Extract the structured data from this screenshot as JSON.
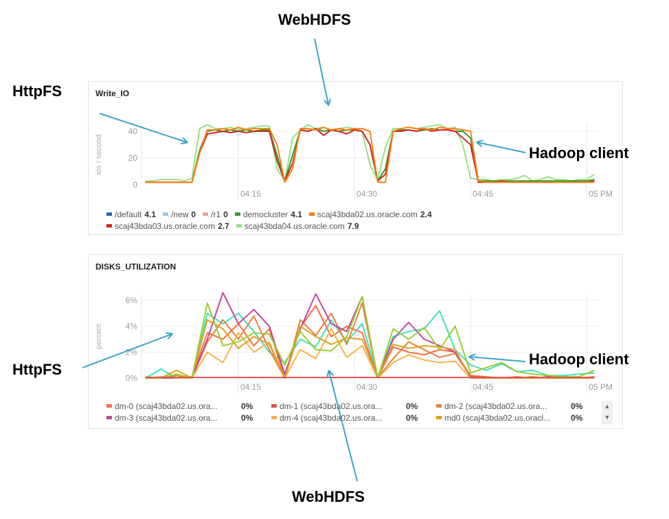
{
  "annotations": {
    "webhdfs_top": "WebHDFS",
    "httpfs_top": "HttpFS",
    "hadoop_top": "Hadoop client",
    "httpfs_bottom": "HttpFS",
    "hadoop_bottom": "Hadoop client",
    "webhdfs_bottom": "WebHDFS",
    "arrow_color": "#3aa3c7"
  },
  "chart_data": [
    {
      "type": "line",
      "title": "Write_IO",
      "ylabel": "ios / second",
      "xlabel": "",
      "ylim": [
        0,
        45
      ],
      "yticks": [
        "0",
        "20",
        "40"
      ],
      "ytick_values": [
        0,
        20,
        40
      ],
      "xticks": [
        "04:15",
        "04:30",
        "04:45",
        "05 PM"
      ],
      "xtick_values": [
        15,
        30,
        45,
        60
      ],
      "x_unit": "minutes after 04:00",
      "x": [
        3,
        4,
        5,
        6,
        7,
        8,
        9,
        10,
        11,
        12,
        13,
        14,
        15,
        16,
        17,
        18,
        19,
        20,
        21,
        22,
        23,
        24,
        25,
        26,
        27,
        28,
        29,
        30,
        31,
        32,
        33,
        34,
        35,
        36,
        37,
        38,
        39,
        40,
        41,
        42,
        43,
        44,
        45,
        46,
        47,
        48,
        49,
        50,
        51,
        52,
        53,
        54,
        55,
        56,
        57,
        58,
        59,
        60,
        61
      ],
      "legend": [
        {
          "name": "/default",
          "value": "4.1",
          "color": "#1f6fb4"
        },
        {
          "name": "/new",
          "value": "0",
          "color": "#9ecae1"
        },
        {
          "name": "/r1",
          "value": "0",
          "color": "#f4a0a0"
        },
        {
          "name": "democluster",
          "value": "4.1",
          "color": "#2ca02c"
        },
        {
          "name": "scaj43bda02.us.oracle.com",
          "value": "2.4",
          "color": "#ff7f0e"
        },
        {
          "name": "scaj43bda03.us.oracle.com",
          "value": "2.7",
          "color": "#d62728"
        },
        {
          "name": "scaj43bda04.us.oracle.com",
          "value": "7.9",
          "color": "#98df8a"
        }
      ],
      "series": [
        {
          "name": "scaj43bda04.us.oracle.com",
          "color": "#98df8a",
          "values": [
            3,
            3,
            4,
            4,
            4,
            3,
            5,
            42,
            45,
            42,
            42,
            43,
            41,
            42,
            43,
            44,
            44,
            12,
            3,
            35,
            41,
            45,
            42,
            43,
            41,
            42,
            43,
            42,
            40,
            15,
            4,
            28,
            42,
            42,
            43,
            42,
            43,
            44,
            45,
            42,
            43,
            30,
            5,
            4,
            4,
            3,
            4,
            4,
            5,
            7,
            3,
            4,
            6,
            4,
            4,
            3,
            4,
            4,
            8
          ]
        },
        {
          "name": "democluster",
          "color": "#2ca02c",
          "values": [
            2,
            2,
            2,
            2,
            2,
            2,
            2,
            26,
            40,
            41,
            40,
            41,
            40,
            41,
            40,
            41,
            41,
            22,
            3,
            22,
            41,
            40,
            42,
            40,
            41,
            40,
            41,
            41,
            40,
            30,
            3,
            12,
            40,
            41,
            41,
            40,
            41,
            42,
            41,
            41,
            40,
            40,
            35,
            3,
            3,
            3,
            3,
            3,
            3,
            3,
            3,
            3,
            3,
            3,
            3,
            3,
            3,
            3,
            4
          ]
        },
        {
          "name": "scaj43bda03.us.oracle.com",
          "color": "#d62728",
          "values": [
            2,
            2,
            2,
            2,
            2,
            2,
            2,
            24,
            38,
            39,
            40,
            39,
            40,
            39,
            40,
            40,
            40,
            18,
            3,
            16,
            41,
            40,
            42,
            37,
            41,
            40,
            38,
            41,
            40,
            30,
            3,
            8,
            40,
            40,
            41,
            40,
            42,
            40,
            41,
            41,
            40,
            35,
            30,
            2,
            2,
            2,
            3,
            2,
            2,
            2,
            2,
            2,
            2,
            2,
            2,
            2,
            2,
            2,
            3
          ]
        },
        {
          "name": "scaj43bda02.us.oracle.com",
          "color": "#ff7f0e",
          "values": [
            2,
            2,
            2,
            2,
            2,
            2,
            2,
            24,
            41,
            41,
            42,
            41,
            43,
            41,
            42,
            42,
            42,
            30,
            2,
            12,
            42,
            42,
            41,
            43,
            41,
            42,
            41,
            42,
            42,
            40,
            2,
            2,
            40,
            42,
            43,
            42,
            42,
            41,
            43,
            42,
            42,
            41,
            40,
            3,
            2,
            2,
            2,
            2,
            2,
            2,
            2,
            2,
            2,
            2,
            2,
            2,
            2,
            2,
            2
          ]
        }
      ]
    },
    {
      "type": "line",
      "title": "DISKS_UTILIZATION",
      "ylabel": "percent",
      "xlabel": "",
      "ylim": [
        0,
        7
      ],
      "yticks": [
        "0%",
        "2%",
        "4%",
        "6%"
      ],
      "ytick_values": [
        0,
        2,
        4,
        6
      ],
      "xticks": [
        "04:15",
        "04:30",
        "04:45",
        "05 PM"
      ],
      "xtick_values": [
        15,
        30,
        45,
        60
      ],
      "x_unit": "minutes after 04:00",
      "x": [
        3,
        5,
        7,
        9,
        11,
        13,
        15,
        17,
        19,
        21,
        23,
        25,
        27,
        29,
        31,
        33,
        35,
        37,
        39,
        41,
        43,
        45,
        47,
        49,
        51,
        53,
        55,
        57,
        59,
        61
      ],
      "legend": [
        {
          "name": "dm-0 (scaj43bda02.us.ora...",
          "value": "0%",
          "color": "#ff6a3d"
        },
        {
          "name": "dm-1 (scaj43bda02.us.ora...",
          "value": "0%",
          "color": "#d9534f"
        },
        {
          "name": "dm-2 (scaj43bda02.us.ora...",
          "value": "0%",
          "color": "#e8803a"
        },
        {
          "name": "dm-3 (scaj43bda02.us.ora...",
          "value": "0%",
          "color": "#c0479e"
        },
        {
          "name": "dm-4 (scaj43bda02.us.ora...",
          "value": "0%",
          "color": "#f7b34a"
        },
        {
          "name": "md0 (scaj43bda02.us.oracl...",
          "value": "0%",
          "color": "#e0a020"
        }
      ],
      "series": [
        {
          "color": "#40e0c0",
          "values": [
            0,
            0.7,
            0,
            0,
            5,
            4.2,
            5,
            3.6,
            2,
            1.2,
            3,
            2.4,
            4.5,
            2.8,
            4.2,
            0.1,
            3.2,
            3.6,
            3.8,
            5.2,
            2.2,
            1,
            0.6,
            1.1,
            0.5,
            0.6,
            0.2,
            0.2,
            0.3,
            0.4
          ]
        },
        {
          "color": "#ff6a3d",
          "values": [
            0,
            0.1,
            0,
            0.1,
            3.5,
            3,
            4.2,
            2.5,
            3.8,
            0,
            3.9,
            5.6,
            3.2,
            4,
            3.5,
            0,
            2.4,
            2,
            1.8,
            2.2,
            2,
            0.2,
            0.1,
            0,
            0.1,
            0,
            0,
            0.1,
            0,
            0.1
          ]
        },
        {
          "color": "#e8803a",
          "values": [
            0,
            0,
            0.2,
            0,
            2.8,
            4.5,
            3,
            4.8,
            2.2,
            0,
            4.5,
            3.3,
            5,
            2.6,
            5.8,
            0,
            1.5,
            2.8,
            2.2,
            1.6,
            1.9,
            0.1,
            0,
            0,
            0,
            0.1,
            0,
            0,
            0,
            0
          ]
        },
        {
          "color": "#c0479e",
          "values": [
            0,
            0,
            0,
            0,
            3,
            6.6,
            4.2,
            5.3,
            4,
            0.3,
            3.8,
            6.5,
            4.2,
            3.6,
            6.3,
            0,
            3,
            4.3,
            3,
            2.5,
            2,
            0.1,
            0,
            0,
            0,
            0,
            0.1,
            0,
            0,
            0
          ]
        },
        {
          "color": "#f7b34a",
          "values": [
            0,
            0.1,
            0,
            0,
            2,
            1.2,
            3.5,
            2,
            2.8,
            0,
            2.2,
            1.5,
            3.8,
            1.6,
            2.5,
            0,
            1.2,
            1.8,
            1.4,
            1.2,
            1.3,
            0,
            0,
            0,
            0,
            0,
            0,
            0,
            0,
            0
          ]
        },
        {
          "color": "#e0a020",
          "values": [
            0,
            0,
            0.6,
            0,
            4.5,
            3.8,
            2.3,
            3.2,
            2.6,
            0,
            4,
            3.2,
            2.6,
            3.1,
            3,
            0,
            2.6,
            2.3,
            2.5,
            2.4,
            2.2,
            0,
            0,
            0,
            0,
            0,
            0,
            0,
            0,
            0
          ]
        },
        {
          "color": "#9acd32",
          "values": [
            0.1,
            0,
            0.3,
            0,
            5.8,
            2.5,
            2.8,
            3.5,
            3.4,
            1,
            3.6,
            2.2,
            2.1,
            3.2,
            6.3,
            0,
            3.8,
            3,
            3.9,
            2.2,
            4,
            0.4,
            0.8,
            1.2,
            0.5,
            0.3,
            0.2,
            0.1,
            0.1,
            0.6
          ]
        },
        {
          "color": "#d9534f",
          "values": [
            0.05,
            0.05,
            0.05,
            0.05,
            0.05,
            0.05,
            0.05,
            0.05,
            0.05,
            0.05,
            0.05,
            0.05,
            0.05,
            0.05,
            0.05,
            0.05,
            0.05,
            0.05,
            0.05,
            0.05,
            0.05,
            0.05,
            0.05,
            0.05,
            0.05,
            0.05,
            0.05,
            0.05,
            0.05,
            0.05
          ]
        }
      ]
    }
  ],
  "legend_scroll": {
    "up": "▲",
    "down": "▼"
  }
}
